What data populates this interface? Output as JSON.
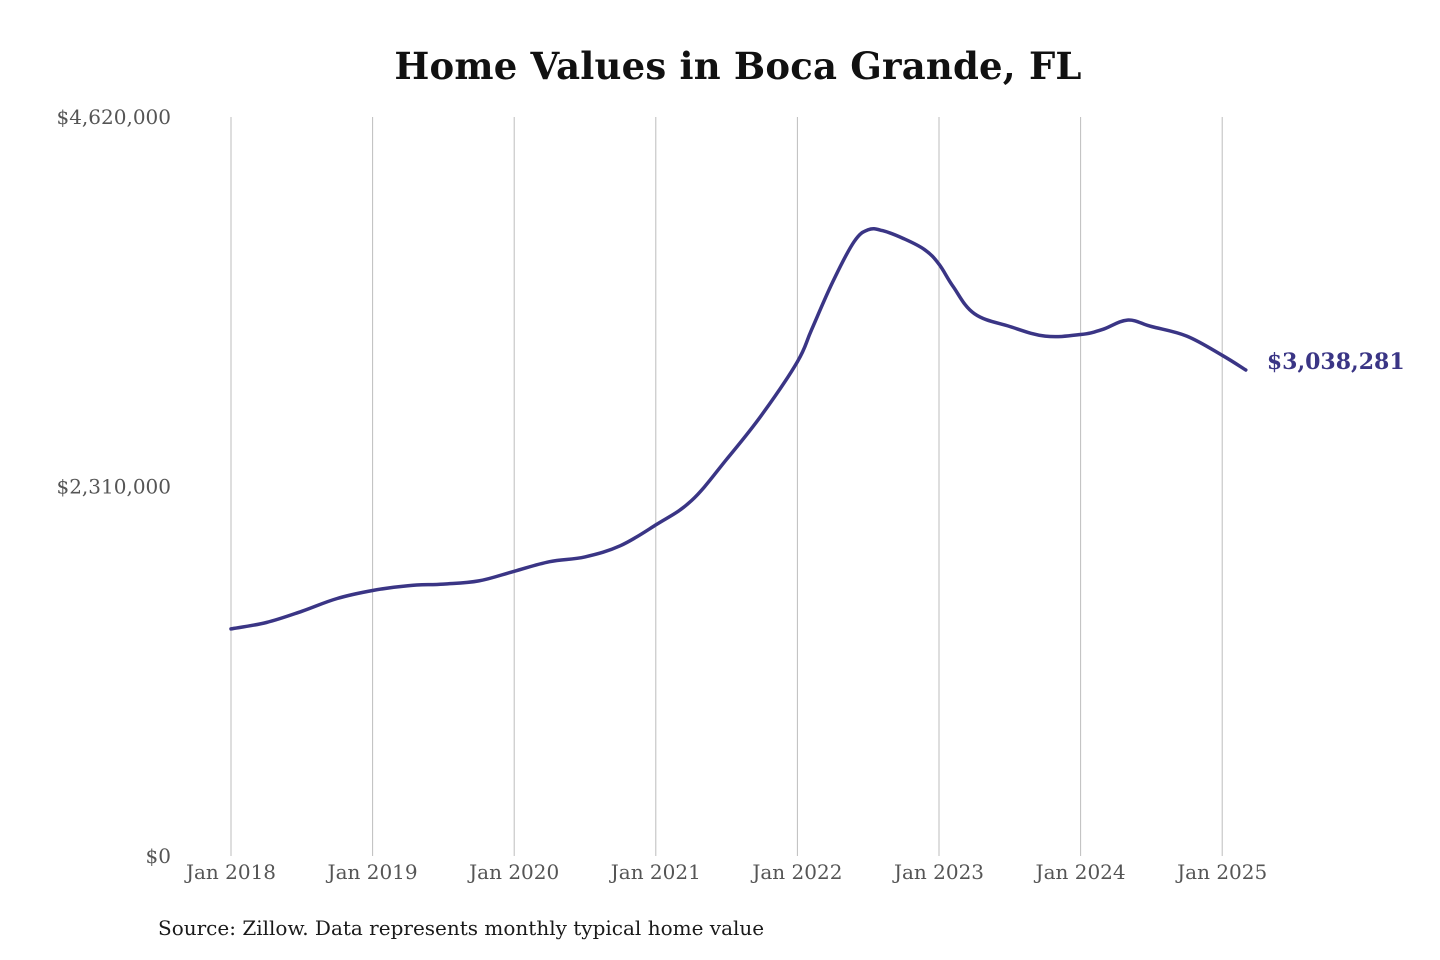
{
  "chart_data": {
    "type": "line",
    "title": "Home Values in Boca Grande, FL",
    "xlabel": "",
    "ylabel": "",
    "ylim": [
      0,
      4620000
    ],
    "xlim": [
      2018.0,
      2025.167
    ],
    "grid": "vertical",
    "legend": "none",
    "y_ticks": [
      {
        "value": 0,
        "label": "$0"
      },
      {
        "value": 2310000,
        "label": "$2,310,000"
      },
      {
        "value": 4620000,
        "label": "$4,620,000"
      }
    ],
    "x_ticks": [
      {
        "value": 2018,
        "label": "Jan 2018"
      },
      {
        "value": 2019,
        "label": "Jan 2019"
      },
      {
        "value": 2020,
        "label": "Jan 2020"
      },
      {
        "value": 2021,
        "label": "Jan 2021"
      },
      {
        "value": 2022,
        "label": "Jan 2022"
      },
      {
        "value": 2023,
        "label": "Jan 2023"
      },
      {
        "value": 2024,
        "label": "Jan 2024"
      },
      {
        "value": 2025,
        "label": "Jan 2025"
      }
    ],
    "series": [
      {
        "name": "Typical home value",
        "color": "#3a3585",
        "x": [
          2018.0,
          2018.25,
          2018.5,
          2018.75,
          2019.0,
          2019.25,
          2019.5,
          2019.75,
          2020.0,
          2020.25,
          2020.5,
          2020.75,
          2021.0,
          2021.25,
          2021.5,
          2021.75,
          2022.0,
          2022.1,
          2022.25,
          2022.4,
          2022.5,
          2022.6,
          2022.75,
          2022.9,
          2023.0,
          2023.1,
          2023.25,
          2023.5,
          2023.75,
          2024.0,
          2024.15,
          2024.33,
          2024.5,
          2024.75,
          2025.0,
          2025.167
        ],
        "values": [
          1420000,
          1460000,
          1530000,
          1610000,
          1660000,
          1690000,
          1700000,
          1720000,
          1780000,
          1840000,
          1870000,
          1940000,
          2070000,
          2220000,
          2480000,
          2760000,
          3090000,
          3290000,
          3590000,
          3840000,
          3915000,
          3910000,
          3860000,
          3790000,
          3700000,
          3560000,
          3390000,
          3310000,
          3250000,
          3260000,
          3290000,
          3350000,
          3310000,
          3250000,
          3130000,
          3038281
        ]
      }
    ],
    "annotations": [
      {
        "text": "$3,038,281",
        "x": 2025.167,
        "y": 3038281
      }
    ]
  },
  "footer": {
    "source": "Source: Zillow. Data represents monthly typical home value"
  },
  "colors": {
    "line": "#3a3585",
    "grid": "#bdbdbd",
    "text": "#555555"
  }
}
